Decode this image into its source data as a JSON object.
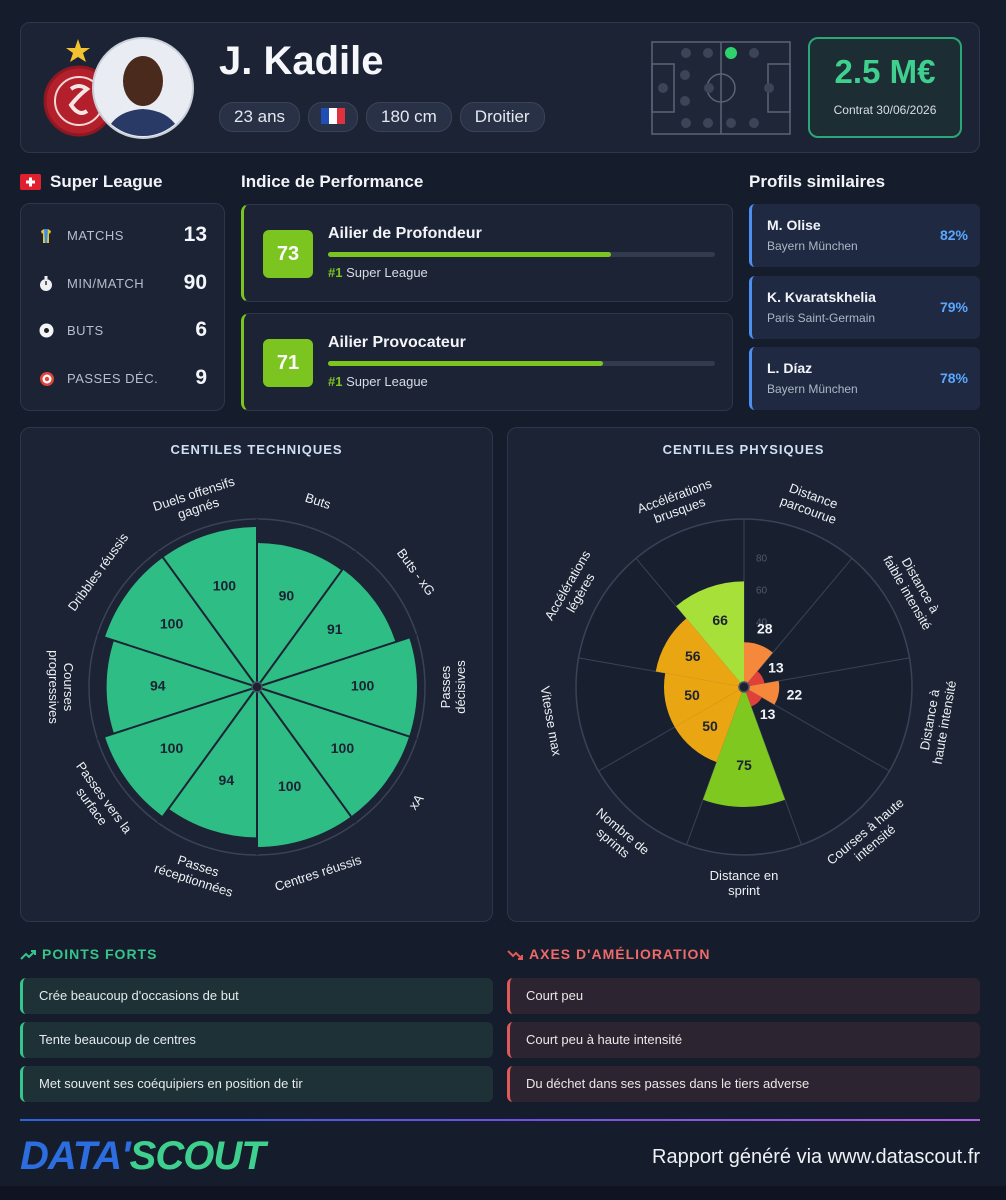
{
  "header": {
    "name": "J. Kadile",
    "tags": [
      "23 ans",
      "180 cm",
      "Droitier"
    ],
    "market_value": "2.5 M€",
    "contract": "Contrat 30/06/2026"
  },
  "league": {
    "name": "Super League",
    "stats": [
      {
        "label": "MATCHS",
        "value": 13
      },
      {
        "label": "MIN/MATCH",
        "value": 90
      },
      {
        "label": "BUTS",
        "value": 6
      },
      {
        "label": "PASSES DÉC.",
        "value": 9
      }
    ]
  },
  "performance": {
    "title": "Indice de Performance",
    "profiles": [
      {
        "score": 73,
        "name": "Ailier de Profondeur",
        "rank": "#1",
        "league": "Super League"
      },
      {
        "score": 71,
        "name": "Ailier Provocateur",
        "rank": "#1",
        "league": "Super League"
      }
    ]
  },
  "similar": {
    "title": "Profils similaires",
    "players": [
      {
        "name": "M. Olise",
        "club": "Bayern München",
        "similarity": "82%"
      },
      {
        "name": "K. Kvaratskhelia",
        "club": "Paris Saint-Germain",
        "similarity": "79%"
      },
      {
        "name": "L. Díaz",
        "club": "Bayern München",
        "similarity": "78%"
      }
    ]
  },
  "chart_data": [
    {
      "type": "polar",
      "title": "CENTILES TECHNIQUES",
      "categories": [
        "Buts",
        "Buts - xG",
        "Passes décisives",
        "xA",
        "Centres réussis",
        "Passes réceptionnées",
        "Passes vers la surface",
        "Courses progressives",
        "Dribbles réussis",
        "Duels offensifs gagnés"
      ],
      "values": [
        90,
        91,
        100,
        100,
        100,
        94,
        100,
        94,
        100,
        100
      ],
      "color": "#2ebd85",
      "rlim": [
        0,
        100
      ]
    },
    {
      "type": "polar",
      "title": "CENTILES PHYSIQUES",
      "categories": [
        "Distance parcourue",
        "Distance à faible intensité",
        "Distance à haute intensité",
        "Courses à haute intensité",
        "Distance en sprint",
        "Nombre de sprints",
        "Vitesse max",
        "Accélérations légères",
        "Accélérations brusques"
      ],
      "values": [
        28,
        13,
        22,
        13,
        75,
        50,
        50,
        56,
        66
      ],
      "colors": [
        "#f5883a",
        "#e0403a",
        "#f5883a",
        "#e0403a",
        "#7ec820",
        "#eaa512",
        "#eaa512",
        "#eaa512",
        "#a8e03a"
      ],
      "rlim": [
        0,
        100
      ],
      "rticks": [
        40,
        60,
        80
      ]
    }
  ],
  "strengths": {
    "title": "POINTS FORTS",
    "items": [
      "Crée beaucoup d'occasions de but",
      "Tente beaucoup de centres",
      "Met souvent ses coéquipiers en position de tir"
    ]
  },
  "improvements": {
    "title": "AXES D'AMÉLIORATION",
    "items": [
      "Court peu",
      "Court peu à haute intensité",
      "Du déchet dans ses passes dans le tiers adverse"
    ]
  },
  "footer": {
    "logo": [
      "DATA'",
      "SCOUT"
    ],
    "text": "Rapport généré via www.datascout.fr"
  }
}
